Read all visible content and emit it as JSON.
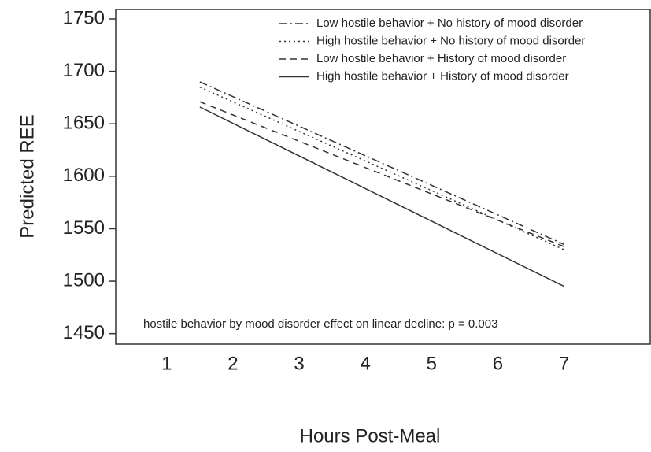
{
  "chart_data": {
    "type": "line",
    "y_label": "Predicted REE",
    "x_label": "Hours Post-Meal",
    "annotation": "hostile behavior by mood disorder effect on linear decline: p = 0.003",
    "x": [
      1.5,
      7
    ],
    "series": [
      {
        "name": "Low hostile behavior + No history of mood disorder",
        "color": "#333333",
        "linestyle": "dashdot",
        "values": [
          1690,
          1535
        ]
      },
      {
        "name": "High hostile behavior + No history of mood disorder",
        "color": "#333333",
        "linestyle": "dotted",
        "values": [
          1685,
          1530
        ]
      },
      {
        "name": "Low hostile behavior + History of mood disorder",
        "color": "#333333",
        "linestyle": "dashed",
        "values": [
          1671,
          1533
        ]
      },
      {
        "name": "High hostile behavior + History of mood disorder",
        "color": "#333333",
        "linestyle": "solid",
        "values": [
          1666,
          1495
        ]
      }
    ],
    "xlim": [
      0.23,
      8.3
    ],
    "ylim": [
      1440,
      1759
    ],
    "xticks": [
      1,
      2,
      3,
      4,
      5,
      6,
      7
    ],
    "yticks": [
      1450,
      1500,
      1550,
      1600,
      1650,
      1700,
      1750
    ],
    "legend": "upper right",
    "grid": false
  }
}
